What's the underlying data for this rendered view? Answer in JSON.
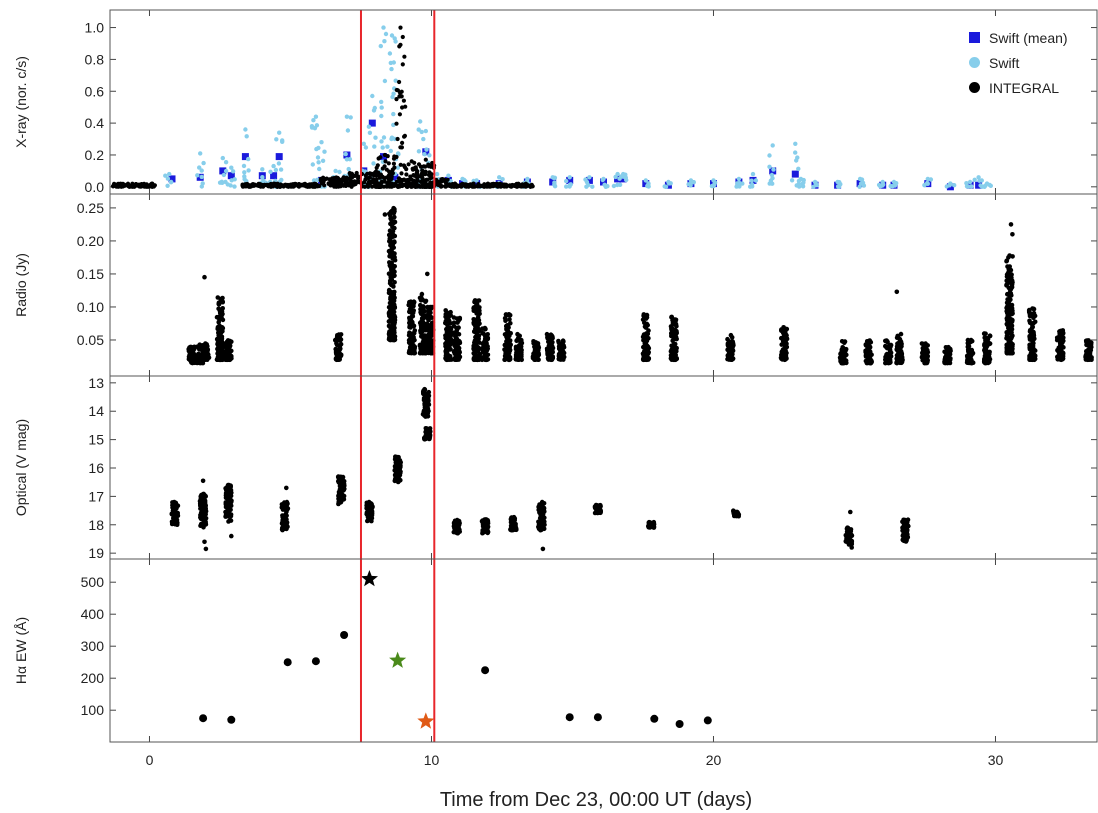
{
  "colors": {
    "swift_mean": "#1a1adc",
    "swift": "#87ceeb",
    "integral": "#000000",
    "guide_lines": "#e8262b",
    "star_1": "#000000",
    "star_2": "#4a8a1a",
    "star_3": "#e05a16"
  },
  "chart_data": {
    "type": "scatter",
    "x_axis": {
      "label": "Time from Dec 23, 00:00 UT (days)",
      "range": [
        -1.4,
        33.6
      ],
      "ticks": [
        0,
        10,
        20,
        30
      ],
      "tick_labels": [
        "0",
        "10",
        "20",
        "30"
      ]
    },
    "vertical_lines_x": [
      7.5,
      10.1
    ],
    "legend": {
      "position": "top-right",
      "entries": [
        {
          "label": "Swift (mean)",
          "marker": "square",
          "color_key": "swift_mean"
        },
        {
          "label": "Swift",
          "marker": "circle",
          "color_key": "swift"
        },
        {
          "label": "INTEGRAL",
          "marker": "circle",
          "color_key": "integral"
        }
      ]
    },
    "panels": [
      {
        "id": "xray",
        "ylabel": "X-ray (nor. c/s)",
        "ylim": [
          -0.02,
          1.06
        ],
        "yticks": [
          0.0,
          0.2,
          0.4,
          0.6,
          0.8,
          1.0
        ],
        "ytick_labels": [
          "0.0",
          "0.2",
          "0.4",
          "0.6",
          "0.8",
          "1.0"
        ],
        "series": [
          {
            "name": "Swift (mean)",
            "marker": "square",
            "points": [
              [
                0.8,
                0.05
              ],
              [
                1.8,
                0.06
              ],
              [
                2.6,
                0.1
              ],
              [
                2.9,
                0.07
              ],
              [
                3.4,
                0.19
              ],
              [
                4.0,
                0.07
              ],
              [
                4.4,
                0.07
              ],
              [
                4.6,
                0.19
              ],
              [
                6.1,
                0.04
              ],
              [
                6.6,
                0.04
              ],
              [
                7.0,
                0.2
              ],
              [
                7.6,
                0.1
              ],
              [
                7.9,
                0.4
              ],
              [
                8.3,
                0.19
              ],
              [
                8.7,
                0.06
              ],
              [
                9.8,
                0.22
              ],
              [
                10.6,
                0.04
              ],
              [
                11.1,
                0.02
              ],
              [
                11.6,
                0.02
              ],
              [
                12.4,
                0.02
              ],
              [
                13.4,
                0.03
              ],
              [
                14.3,
                0.03
              ],
              [
                14.9,
                0.04
              ],
              [
                15.6,
                0.04
              ],
              [
                16.1,
                0.03
              ],
              [
                16.6,
                0.05
              ],
              [
                16.8,
                0.05
              ],
              [
                17.6,
                0.02
              ],
              [
                18.4,
                0.01
              ],
              [
                19.2,
                0.02
              ],
              [
                20.0,
                0.02
              ],
              [
                20.9,
                0.03
              ],
              [
                21.4,
                0.04
              ],
              [
                22.1,
                0.1
              ],
              [
                22.9,
                0.08
              ],
              [
                23.6,
                0.01
              ],
              [
                24.4,
                0.01
              ],
              [
                25.2,
                0.02
              ],
              [
                26.0,
                0.01
              ],
              [
                26.4,
                0.01
              ],
              [
                27.6,
                0.02
              ],
              [
                28.4,
                0.0
              ],
              [
                29.1,
                0.01
              ],
              [
                29.4,
                0.01
              ]
            ]
          },
          {
            "name": "Swift",
            "marker": "circle",
            "bursts": [
              [
                0.7,
                0.08
              ],
              [
                1.8,
                0.21
              ],
              [
                2.6,
                0.18
              ],
              [
                2.9,
                0.12
              ],
              [
                3.4,
                0.36
              ],
              [
                4.0,
                0.11
              ],
              [
                4.4,
                0.13
              ],
              [
                4.6,
                0.34
              ],
              [
                5.9,
                0.44
              ],
              [
                6.1,
                0.28
              ],
              [
                6.6,
                0.1
              ],
              [
                7.0,
                0.44
              ],
              [
                7.6,
                0.27
              ],
              [
                7.9,
                0.57
              ],
              [
                8.3,
                1.0
              ],
              [
                8.6,
                0.95
              ],
              [
                8.7,
                0.3
              ],
              [
                9.6,
                0.41
              ],
              [
                9.8,
                0.35
              ],
              [
                10.2,
                0.08
              ],
              [
                10.6,
                0.07
              ],
              [
                11.1,
                0.05
              ],
              [
                11.6,
                0.04
              ],
              [
                12.4,
                0.06
              ],
              [
                13.4,
                0.05
              ],
              [
                14.3,
                0.06
              ],
              [
                14.9,
                0.06
              ],
              [
                15.6,
                0.06
              ],
              [
                16.1,
                0.05
              ],
              [
                16.6,
                0.08
              ],
              [
                16.8,
                0.08
              ],
              [
                17.6,
                0.04
              ],
              [
                18.4,
                0.03
              ],
              [
                19.2,
                0.04
              ],
              [
                20.0,
                0.04
              ],
              [
                20.9,
                0.05
              ],
              [
                21.4,
                0.08
              ],
              [
                22.1,
                0.26
              ],
              [
                22.9,
                0.27
              ],
              [
                23.1,
                0.05
              ],
              [
                23.6,
                0.03
              ],
              [
                24.4,
                0.03
              ],
              [
                25.2,
                0.05
              ],
              [
                26.0,
                0.03
              ],
              [
                26.4,
                0.03
              ],
              [
                27.6,
                0.05
              ],
              [
                28.4,
                0.02
              ],
              [
                29.1,
                0.03
              ],
              [
                29.4,
                0.06
              ],
              [
                29.7,
                0.02
              ]
            ]
          },
          {
            "name": "INTEGRAL",
            "marker": "circle",
            "segments": [
              [
                -1.3,
                0.2,
                0.0,
                0.02
              ],
              [
                3.3,
                6.0,
                0.0,
                0.02
              ],
              [
                6.0,
                7.1,
                0.0,
                0.06
              ],
              [
                7.1,
                8.0,
                0.0,
                0.09
              ],
              [
                8.0,
                8.7,
                0.0,
                0.2
              ],
              [
                8.7,
                9.1,
                0.0,
                1.0
              ],
              [
                9.1,
                9.5,
                0.0,
                0.16
              ],
              [
                9.5,
                10.1,
                0.0,
                0.17
              ],
              [
                10.1,
                10.6,
                0.0,
                0.05
              ],
              [
                10.6,
                13.6,
                0.0,
                0.02
              ]
            ]
          }
        ]
      },
      {
        "id": "radio",
        "ylabel": "Radio (Jy)",
        "ylim": [
          0.0,
          0.265
        ],
        "yticks": [
          0.05,
          0.1,
          0.15,
          0.2,
          0.25
        ],
        "ytick_labels": [
          "0.05",
          "0.10",
          "0.15",
          "0.20",
          "0.25"
        ],
        "series": [
          {
            "name": "",
            "marker": "circle",
            "clusters": [
              [
                1.5,
                0.015,
                0.04
              ],
              [
                1.8,
                0.015,
                0.045
              ],
              [
                2.0,
                0.02,
                0.045
              ],
              [
                2.5,
                0.02,
                0.115
              ],
              [
                2.8,
                0.02,
                0.05
              ],
              [
                6.7,
                0.02,
                0.06
              ],
              [
                8.6,
                0.05,
                0.25
              ],
              [
                9.3,
                0.03,
                0.11
              ],
              [
                9.7,
                0.03,
                0.12
              ],
              [
                9.95,
                0.03,
                0.1
              ],
              [
                10.6,
                0.02,
                0.095
              ],
              [
                10.9,
                0.02,
                0.085
              ],
              [
                11.6,
                0.02,
                0.11
              ],
              [
                11.9,
                0.02,
                0.07
              ],
              [
                12.7,
                0.02,
                0.09
              ],
              [
                13.1,
                0.02,
                0.06
              ],
              [
                13.7,
                0.02,
                0.05
              ],
              [
                14.2,
                0.02,
                0.06
              ],
              [
                14.6,
                0.02,
                0.05
              ],
              [
                17.6,
                0.02,
                0.09
              ],
              [
                18.6,
                0.02,
                0.085
              ],
              [
                20.6,
                0.02,
                0.06
              ],
              [
                22.5,
                0.02,
                0.07
              ],
              [
                24.6,
                0.015,
                0.05
              ],
              [
                25.5,
                0.015,
                0.05
              ],
              [
                26.2,
                0.015,
                0.05
              ],
              [
                26.6,
                0.015,
                0.06
              ],
              [
                27.5,
                0.015,
                0.05
              ],
              [
                28.3,
                0.015,
                0.04
              ],
              [
                29.1,
                0.015,
                0.05
              ],
              [
                29.7,
                0.015,
                0.06
              ],
              [
                30.5,
                0.03,
                0.18
              ],
              [
                31.3,
                0.02,
                0.1
              ],
              [
                32.3,
                0.02,
                0.065
              ],
              [
                33.3,
                0.02,
                0.05
              ]
            ],
            "outliers": [
              [
                1.95,
                0.145
              ],
              [
                8.35,
                0.24
              ],
              [
                9.85,
                0.15
              ],
              [
                26.5,
                0.123
              ],
              [
                30.55,
                0.225
              ],
              [
                30.6,
                0.21
              ],
              [
                31.35,
                0.097
              ],
              [
                32.4,
                0.06
              ]
            ]
          }
        ]
      },
      {
        "id": "optical",
        "ylabel": "Optical (V mag)",
        "ylim": [
          19.1,
          12.9
        ],
        "yticks": [
          13,
          14,
          15,
          16,
          17,
          18,
          19
        ],
        "ytick_labels": [
          "13",
          "14",
          "15",
          "16",
          "17",
          "18",
          "19"
        ],
        "series": [
          {
            "name": "",
            "marker": "circle",
            "clusters": [
              [
                0.9,
                17.2,
                18.0
              ],
              [
                1.9,
                16.9,
                18.1
              ],
              [
                2.8,
                16.6,
                17.9
              ],
              [
                4.8,
                17.2,
                18.2
              ],
              [
                6.8,
                16.3,
                17.3
              ],
              [
                7.8,
                17.2,
                17.9
              ],
              [
                8.8,
                15.6,
                16.5
              ],
              [
                9.8,
                13.2,
                14.2
              ],
              [
                9.85,
                14.6,
                15.0
              ],
              [
                10.9,
                17.8,
                18.3
              ],
              [
                11.9,
                17.8,
                18.3
              ],
              [
                12.9,
                17.7,
                18.2
              ],
              [
                13.9,
                17.2,
                18.2
              ],
              [
                15.9,
                17.3,
                17.6
              ],
              [
                17.8,
                17.9,
                18.1
              ],
              [
                20.8,
                17.5,
                17.7
              ],
              [
                24.8,
                18.1,
                18.7
              ],
              [
                26.8,
                17.8,
                18.6
              ]
            ],
            "outliers": [
              [
                1.9,
                16.45
              ],
              [
                1.95,
                18.6
              ],
              [
                2.0,
                18.85
              ],
              [
                2.9,
                18.4
              ],
              [
                4.85,
                16.7
              ],
              [
                13.95,
                18.85
              ],
              [
                24.85,
                17.55
              ],
              [
                24.9,
                18.8
              ],
              [
                26.85,
                18.55
              ]
            ]
          }
        ]
      },
      {
        "id": "halpha",
        "ylabel": "Hα EW (Å)",
        "ylim": [
          10,
          560
        ],
        "yticks": [
          100,
          200,
          300,
          400,
          500
        ],
        "ytick_labels": [
          "100",
          "200",
          "300",
          "400",
          "500"
        ],
        "series": [
          {
            "name": "",
            "marker": "circle",
            "points": [
              [
                1.9,
                75
              ],
              [
                2.9,
                70
              ],
              [
                4.9,
                250
              ],
              [
                5.9,
                253
              ],
              [
                6.9,
                335
              ],
              [
                11.9,
                225
              ],
              [
                14.9,
                78
              ],
              [
                15.9,
                78
              ],
              [
                17.9,
                73
              ],
              [
                18.8,
                57
              ],
              [
                19.8,
                68
              ]
            ]
          },
          {
            "name": "",
            "marker": "star",
            "points": [
              [
                7.8,
                510,
                "star_1"
              ],
              [
                8.8,
                255,
                "star_2"
              ],
              [
                9.8,
                65,
                "star_3"
              ]
            ]
          }
        ]
      }
    ]
  }
}
